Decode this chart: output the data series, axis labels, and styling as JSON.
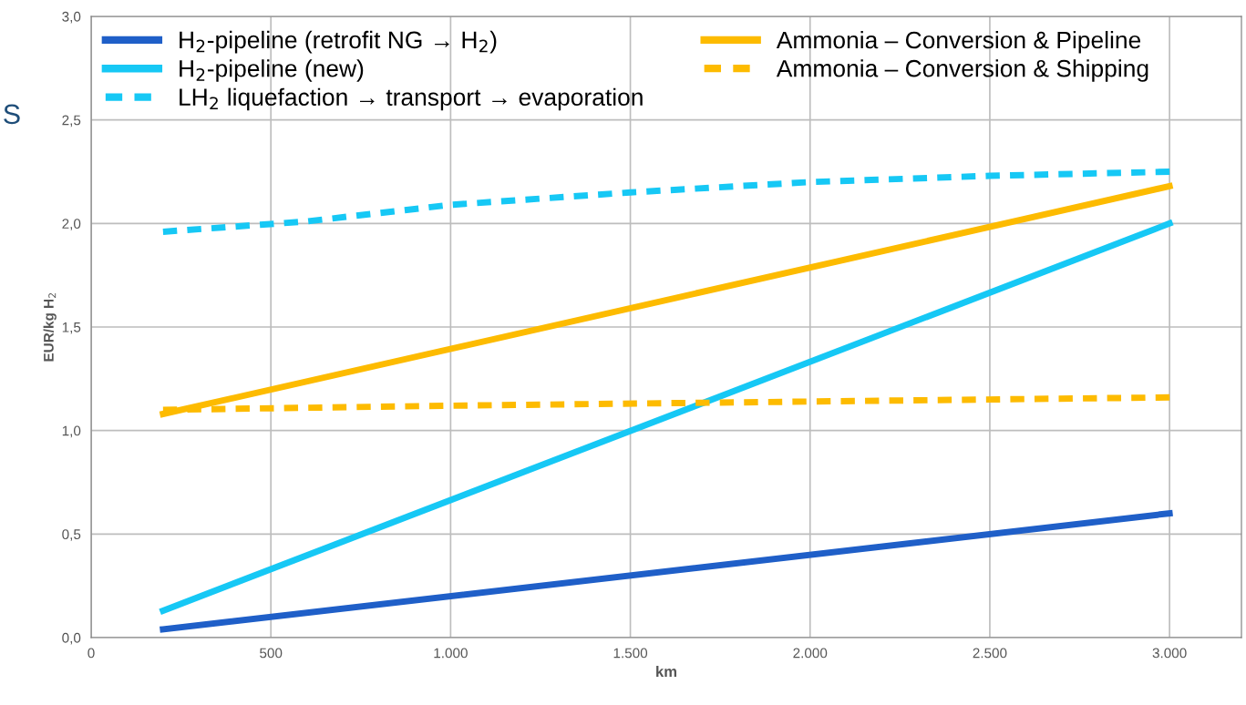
{
  "chart_data": {
    "type": "line",
    "xlabel": "km",
    "ylabel": "EUR/kg H$_{2}$",
    "xlim": [
      0,
      3200
    ],
    "ylim": [
      0,
      3.0
    ],
    "xticks": [
      {
        "value": 0,
        "label": "0"
      },
      {
        "value": 500,
        "label": "500"
      },
      {
        "value": 1000,
        "label": "1.000"
      },
      {
        "value": 1500,
        "label": "1.500"
      },
      {
        "value": 2000,
        "label": "2.000"
      },
      {
        "value": 2500,
        "label": "2.500"
      },
      {
        "value": 3000,
        "label": "3.000"
      }
    ],
    "yticks": [
      {
        "value": 0,
        "label": "0,0"
      },
      {
        "value": 0.5,
        "label": "0,5"
      },
      {
        "value": 1.0,
        "label": "1,0"
      },
      {
        "value": 1.5,
        "label": "1,5"
      },
      {
        "value": 2.0,
        "label": "2,0"
      },
      {
        "value": 2.5,
        "label": "2,5"
      },
      {
        "value": 3.0,
        "label": "3,0"
      }
    ],
    "grid": true,
    "legend": "top left",
    "marker": "none",
    "annotations": [
      "S"
    ],
    "series": [
      {
        "name": "H$_{2}$-pipeline (retrofit NG → H$_{2}$)",
        "color": "#1f5fc8",
        "line_style": "solid",
        "x": [
          200,
          3000
        ],
        "values": [
          0.04,
          0.6
        ]
      },
      {
        "name": "H$_{2}$-pipeline (new)",
        "color": "#16c8f5",
        "line_style": "solid",
        "x": [
          200,
          3000
        ],
        "values": [
          0.13,
          2.0
        ]
      },
      {
        "name": "LH$_{2}$ liquefaction → transport → evaporation",
        "color": "#16c8f5",
        "line_style": "dashed",
        "x": [
          200,
          600,
          1000,
          1500,
          2000,
          2500,
          3000
        ],
        "values": [
          1.96,
          2.01,
          2.09,
          2.15,
          2.2,
          2.23,
          2.25
        ]
      },
      {
        "name": "Ammonia – Conversion & Pipeline",
        "color": "#fdbb00",
        "line_style": "solid",
        "x": [
          200,
          3000
        ],
        "values": [
          1.08,
          2.18
        ]
      },
      {
        "name": "Ammonia – Conversion & Shipping",
        "color": "#fdbb00",
        "line_style": "dashed",
        "x": [
          200,
          1000,
          2000,
          3000
        ],
        "values": [
          1.1,
          1.12,
          1.14,
          1.16
        ]
      }
    ]
  }
}
